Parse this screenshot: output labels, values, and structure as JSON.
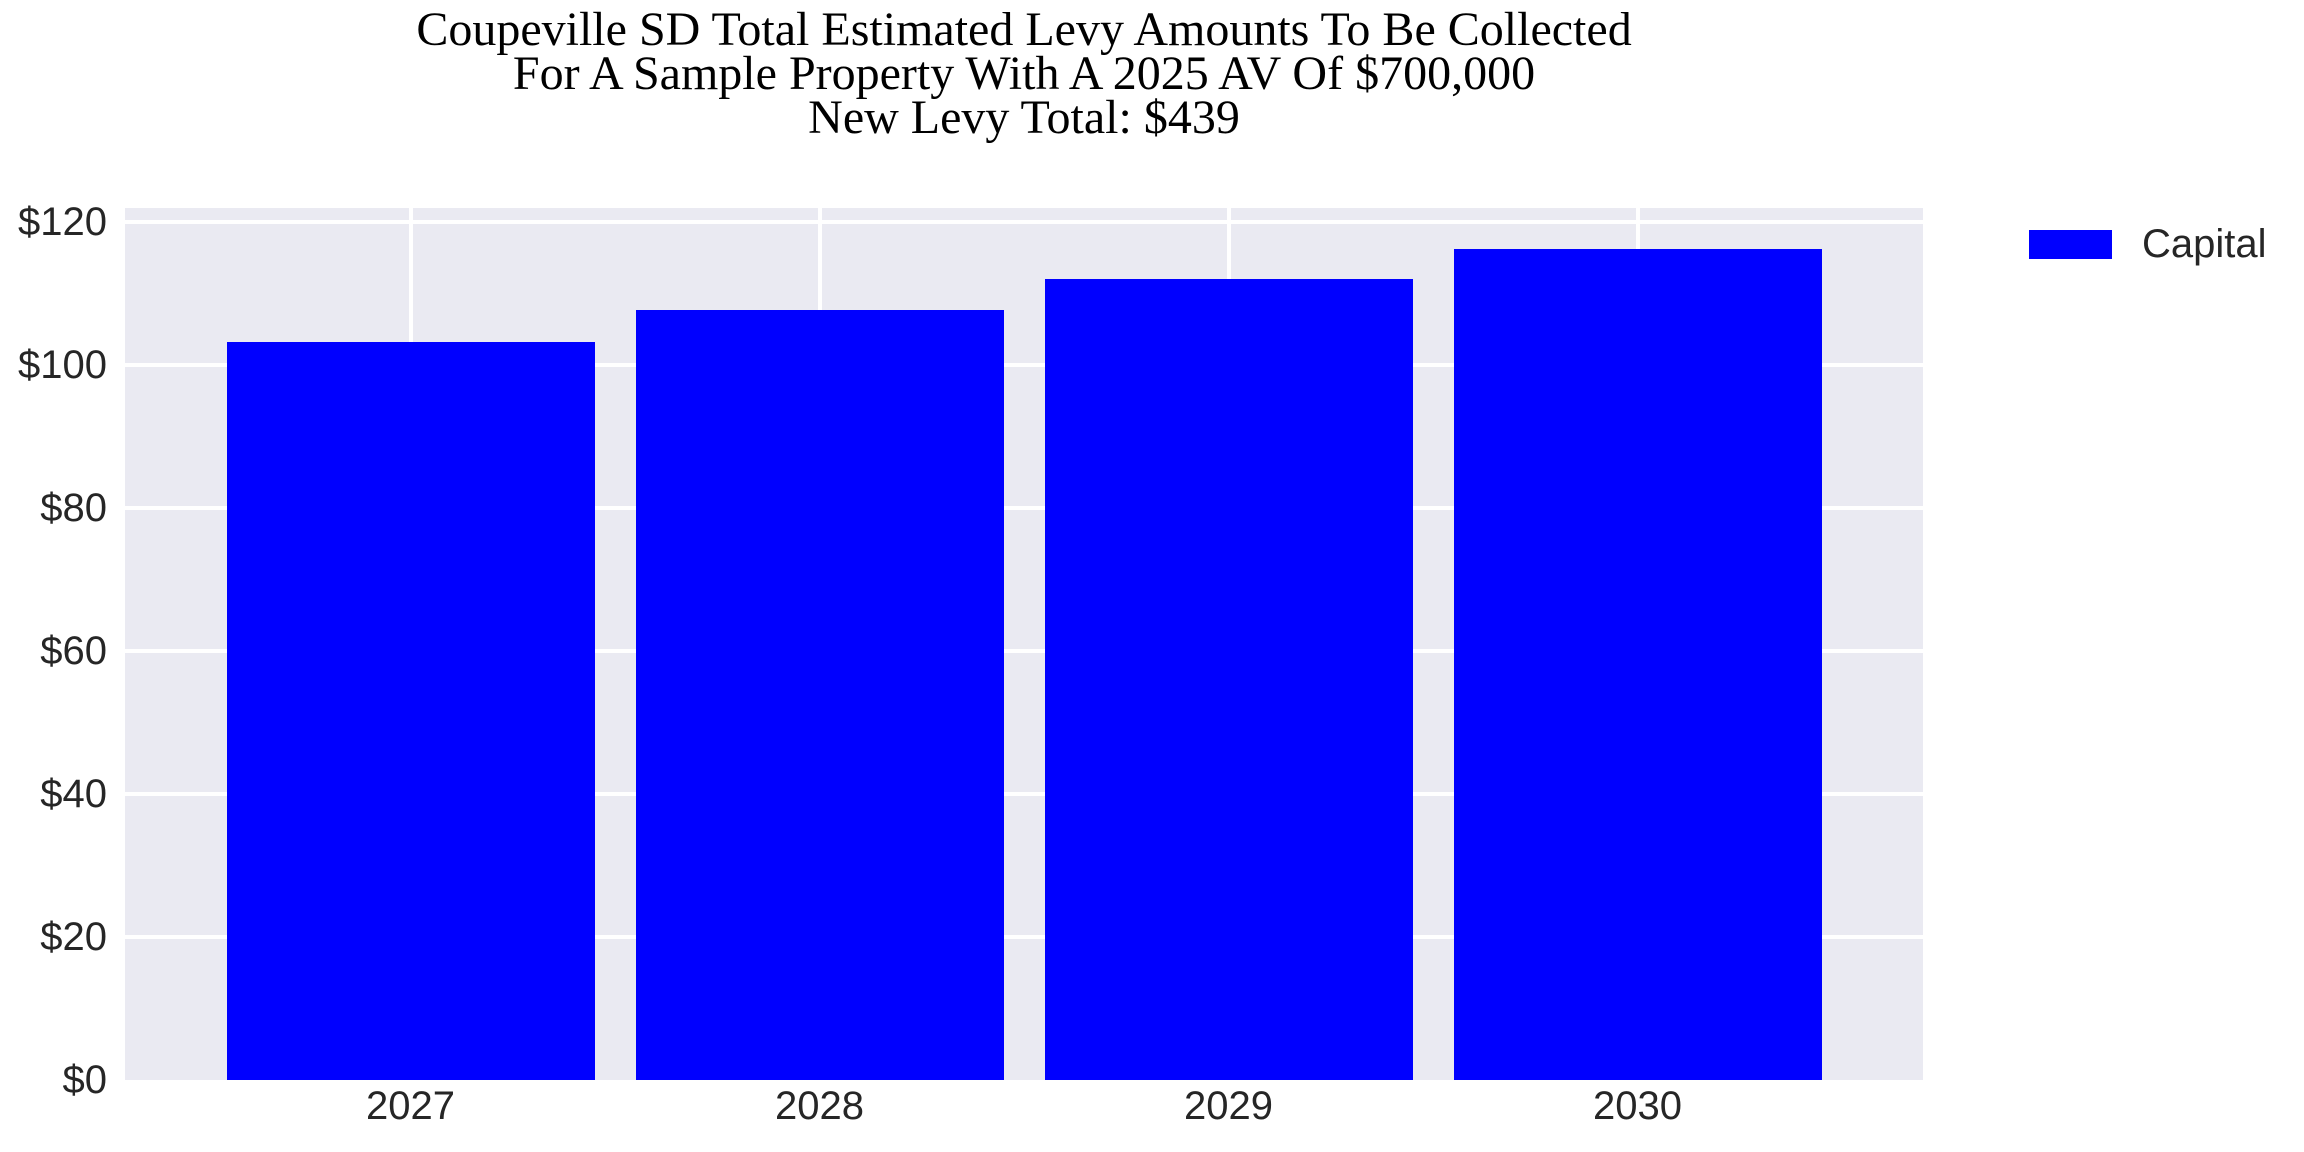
{
  "chart_data": {
    "type": "bar",
    "title": "Coupeville SD Total Estimated Levy Amounts To Be Collected\nFor A Sample Property With A 2025 AV Of $700,000\nNew Levy Total: $439",
    "title_lines": [
      "Coupeville SD Total Estimated Levy Amounts To Be Collected",
      "For A Sample Property With A 2025 AV Of $700,000",
      "New Levy Total: $439"
    ],
    "categories": [
      "2027",
      "2028",
      "2029",
      "2030"
    ],
    "series": [
      {
        "name": "Capital",
        "color": "#0000ff",
        "values": [
          103.3,
          107.7,
          112.0,
          116.3
        ]
      }
    ],
    "xlabel": "",
    "ylabel": "",
    "ylim": [
      0,
      122
    ],
    "yticks": [
      0,
      20,
      40,
      60,
      80,
      100,
      120
    ],
    "ytick_labels": [
      "$0",
      "$20",
      "$40",
      "$60",
      "$80",
      "$100",
      "$120"
    ],
    "grid": true,
    "legend": {
      "entries": [
        "Capital"
      ],
      "position": "upper-right-outside"
    },
    "colors": {
      "plot_bg": "#eaeaf2",
      "grid": "#ffffff",
      "tick_text": "#262626",
      "title_text": "#000000"
    }
  }
}
